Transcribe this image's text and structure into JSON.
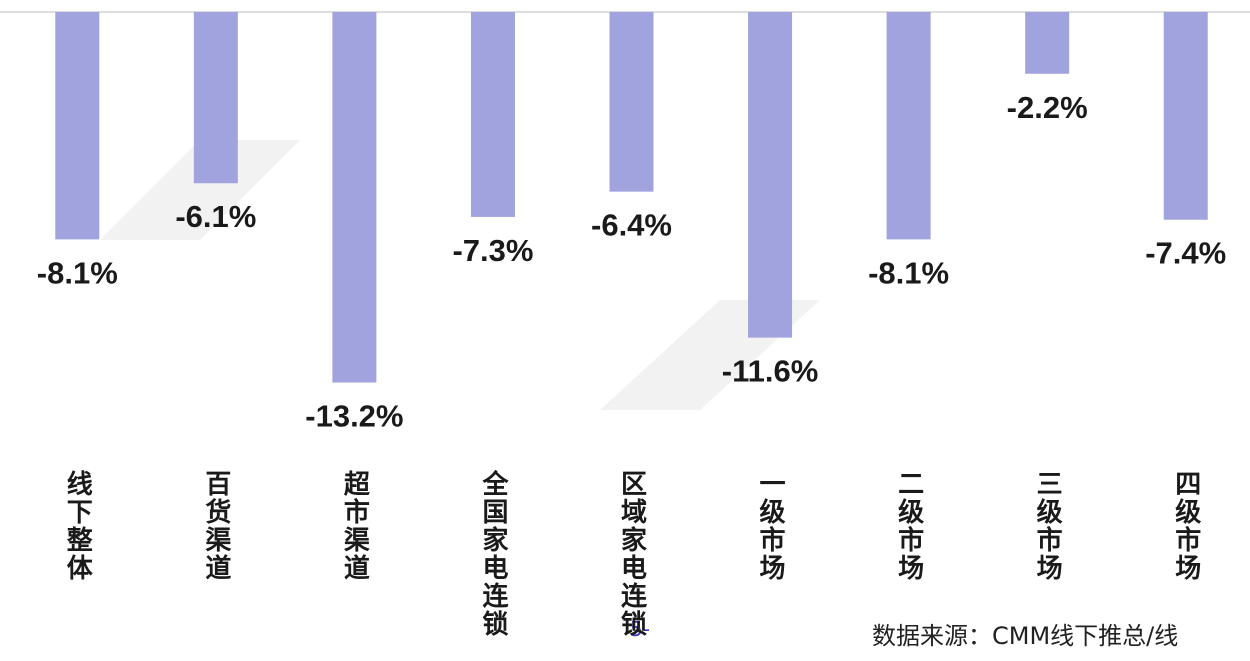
{
  "chart_data": {
    "type": "bar",
    "categories": [
      "线下整体",
      "百货渠道",
      "超市渠道",
      "全国家电连锁",
      "区域家电连锁",
      "一级市场",
      "二级市场",
      "三级市场",
      "四级市场"
    ],
    "values": [
      -8.1,
      -6.1,
      -13.2,
      -7.3,
      -6.4,
      -11.6,
      -8.1,
      -2.2,
      -7.4
    ],
    "value_labels": [
      "-8.1%",
      "-6.1%",
      "-13.2%",
      "-7.3%",
      "-6.4%",
      "-11.6%",
      "-8.1%",
      "-2.2%",
      "-7.4%"
    ],
    "color": "#a0a3dd",
    "ylim": [
      -14,
      0
    ],
    "source": "数据来源：CMM线下推总/线",
    "page_number": "5-"
  }
}
